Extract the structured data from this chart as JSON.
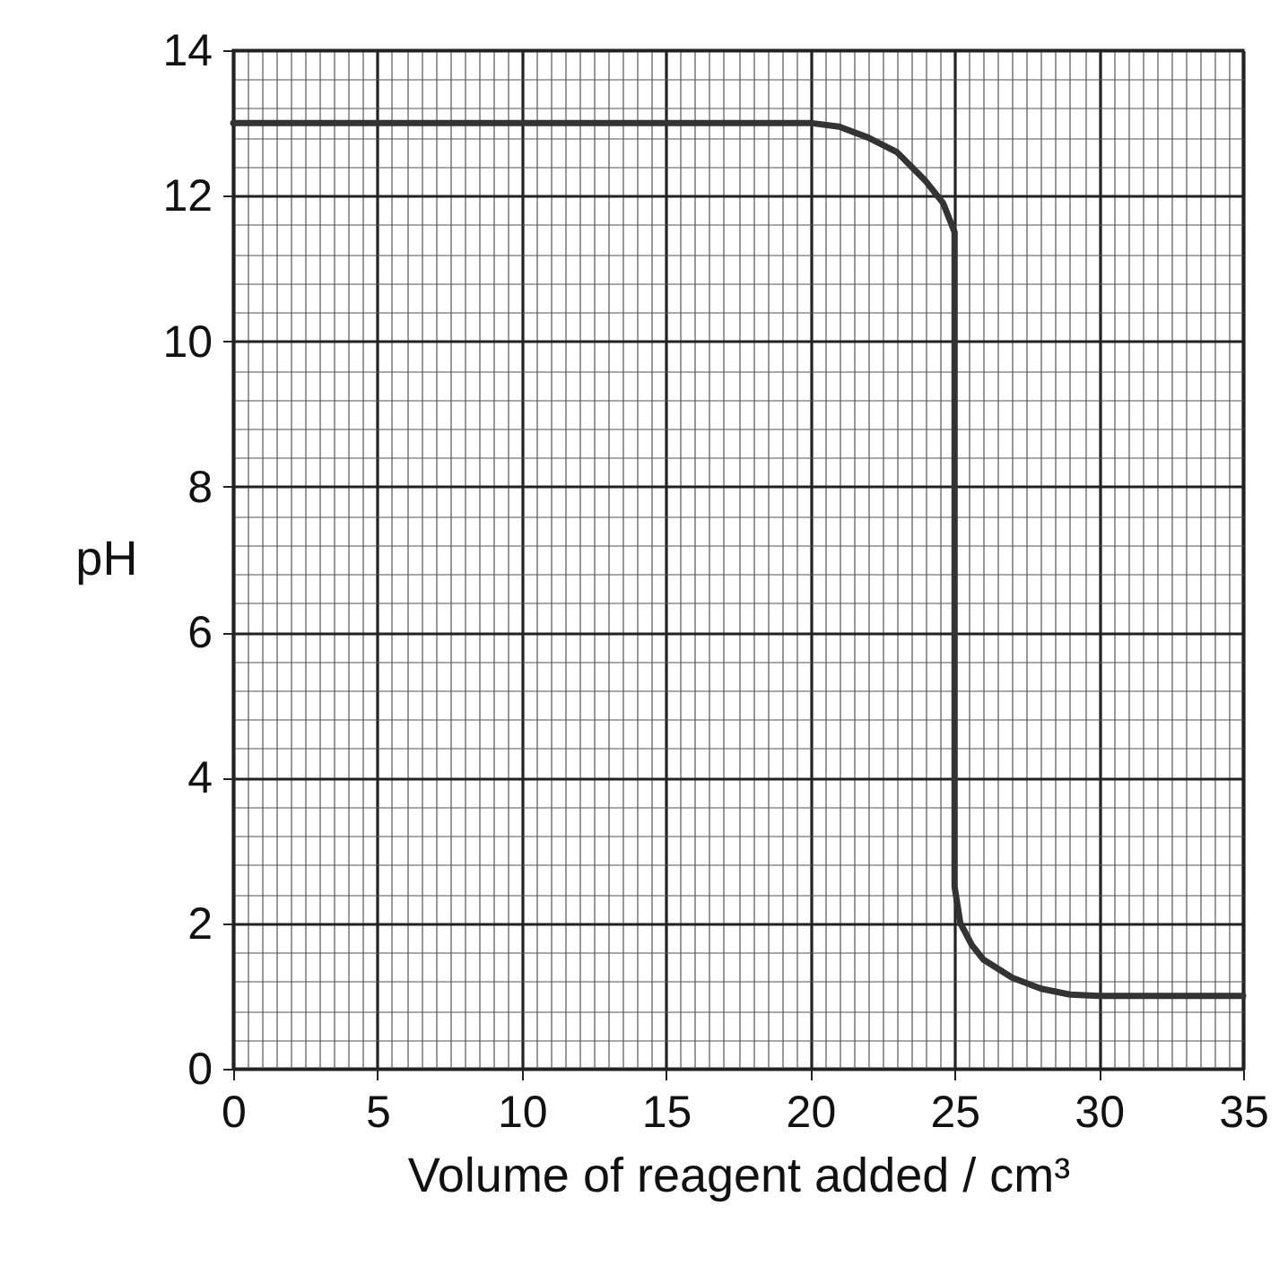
{
  "chart_data": {
    "type": "line",
    "xlabel": "Volume of reagent added / cm³",
    "ylabel": "pH",
    "x": [
      0,
      10,
      20,
      21,
      22,
      23,
      24,
      24.6,
      25,
      25,
      25.2,
      25.6,
      26,
      27,
      28,
      29,
      30,
      35
    ],
    "series": [
      {
        "color": "#333333",
        "values": [
          13,
          13,
          13,
          12.95,
          12.8,
          12.6,
          12.2,
          11.9,
          11.5,
          2.5,
          2,
          1.7,
          1.5,
          1.25,
          1.1,
          1.02,
          1,
          1
        ]
      }
    ],
    "xlim": [
      0,
      35
    ],
    "xticks": [
      0,
      5,
      10,
      15,
      20,
      25,
      30,
      35
    ],
    "ylim": [
      0,
      14
    ],
    "yticks": [
      0,
      2,
      4,
      6,
      8,
      10,
      12,
      14
    ],
    "grid": true,
    "marker": "none",
    "line_style": "solid"
  }
}
